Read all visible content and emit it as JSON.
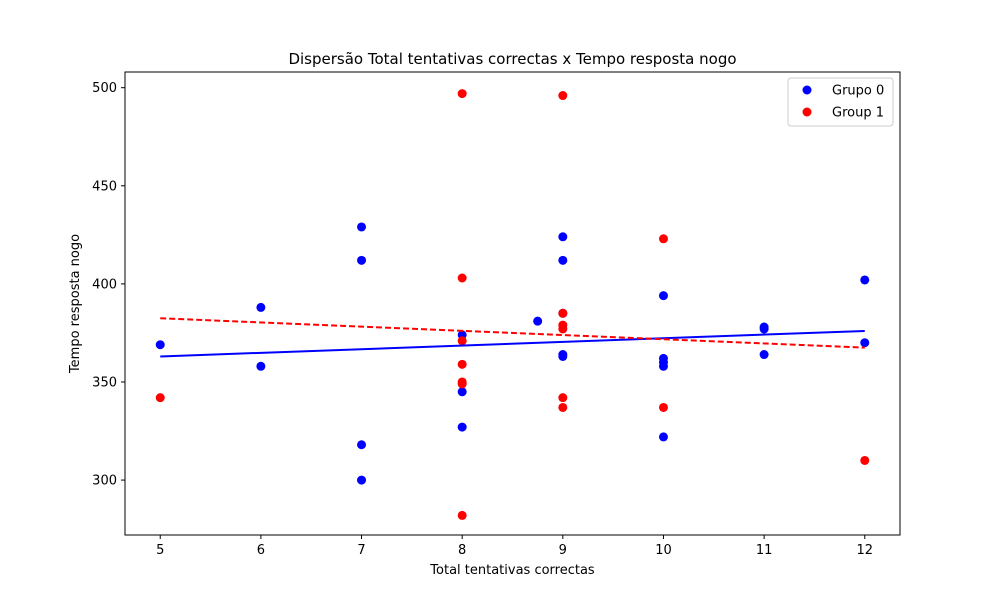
{
  "chart_data": {
    "type": "scatter",
    "title": "Dispersão Total tentativas correctas x Tempo resposta nogo",
    "xlabel": "Total tentativas correctas",
    "ylabel": "Tempo resposta nogo",
    "xlim": [
      4.65,
      12.35
    ],
    "ylim": [
      272,
      508
    ],
    "xticks": [
      5,
      6,
      7,
      8,
      9,
      10,
      11,
      12
    ],
    "yticks": [
      300,
      350,
      400,
      450,
      500
    ],
    "grid": false,
    "legend_position": "top-right",
    "series": [
      {
        "name": "Grupo 0",
        "color": "#0000ff",
        "points": [
          [
            5,
            369
          ],
          [
            6,
            388
          ],
          [
            6,
            358
          ],
          [
            7,
            429
          ],
          [
            7,
            412
          ],
          [
            7,
            318
          ],
          [
            7,
            300
          ],
          [
            8,
            374
          ],
          [
            8,
            345
          ],
          [
            8,
            327
          ],
          [
            8.75,
            381
          ],
          [
            9,
            424
          ],
          [
            9,
            412
          ],
          [
            9,
            385
          ],
          [
            9,
            364
          ],
          [
            9,
            363
          ],
          [
            10,
            394
          ],
          [
            10,
            362
          ],
          [
            10,
            360
          ],
          [
            10,
            358
          ],
          [
            10,
            322
          ],
          [
            11,
            378
          ],
          [
            11,
            377
          ],
          [
            11,
            364
          ],
          [
            12,
            402
          ],
          [
            12,
            370
          ]
        ],
        "trendline": {
          "style": "solid",
          "x": [
            5,
            12
          ],
          "y": [
            363,
            376
          ]
        }
      },
      {
        "name": "Group 1",
        "color": "#ff0000",
        "points": [
          [
            5,
            342
          ],
          [
            8,
            497
          ],
          [
            8,
            403
          ],
          [
            8,
            371
          ],
          [
            8,
            359
          ],
          [
            8,
            350
          ],
          [
            8,
            349
          ],
          [
            8,
            282
          ],
          [
            9,
            496
          ],
          [
            9,
            385
          ],
          [
            9,
            379
          ],
          [
            9,
            377
          ],
          [
            9,
            342
          ],
          [
            9,
            337
          ],
          [
            10,
            423
          ],
          [
            10,
            337
          ],
          [
            12,
            310
          ]
        ],
        "trendline": {
          "style": "dashed",
          "x": [
            5,
            12
          ],
          "y": [
            382.5,
            367.5
          ]
        }
      }
    ]
  }
}
